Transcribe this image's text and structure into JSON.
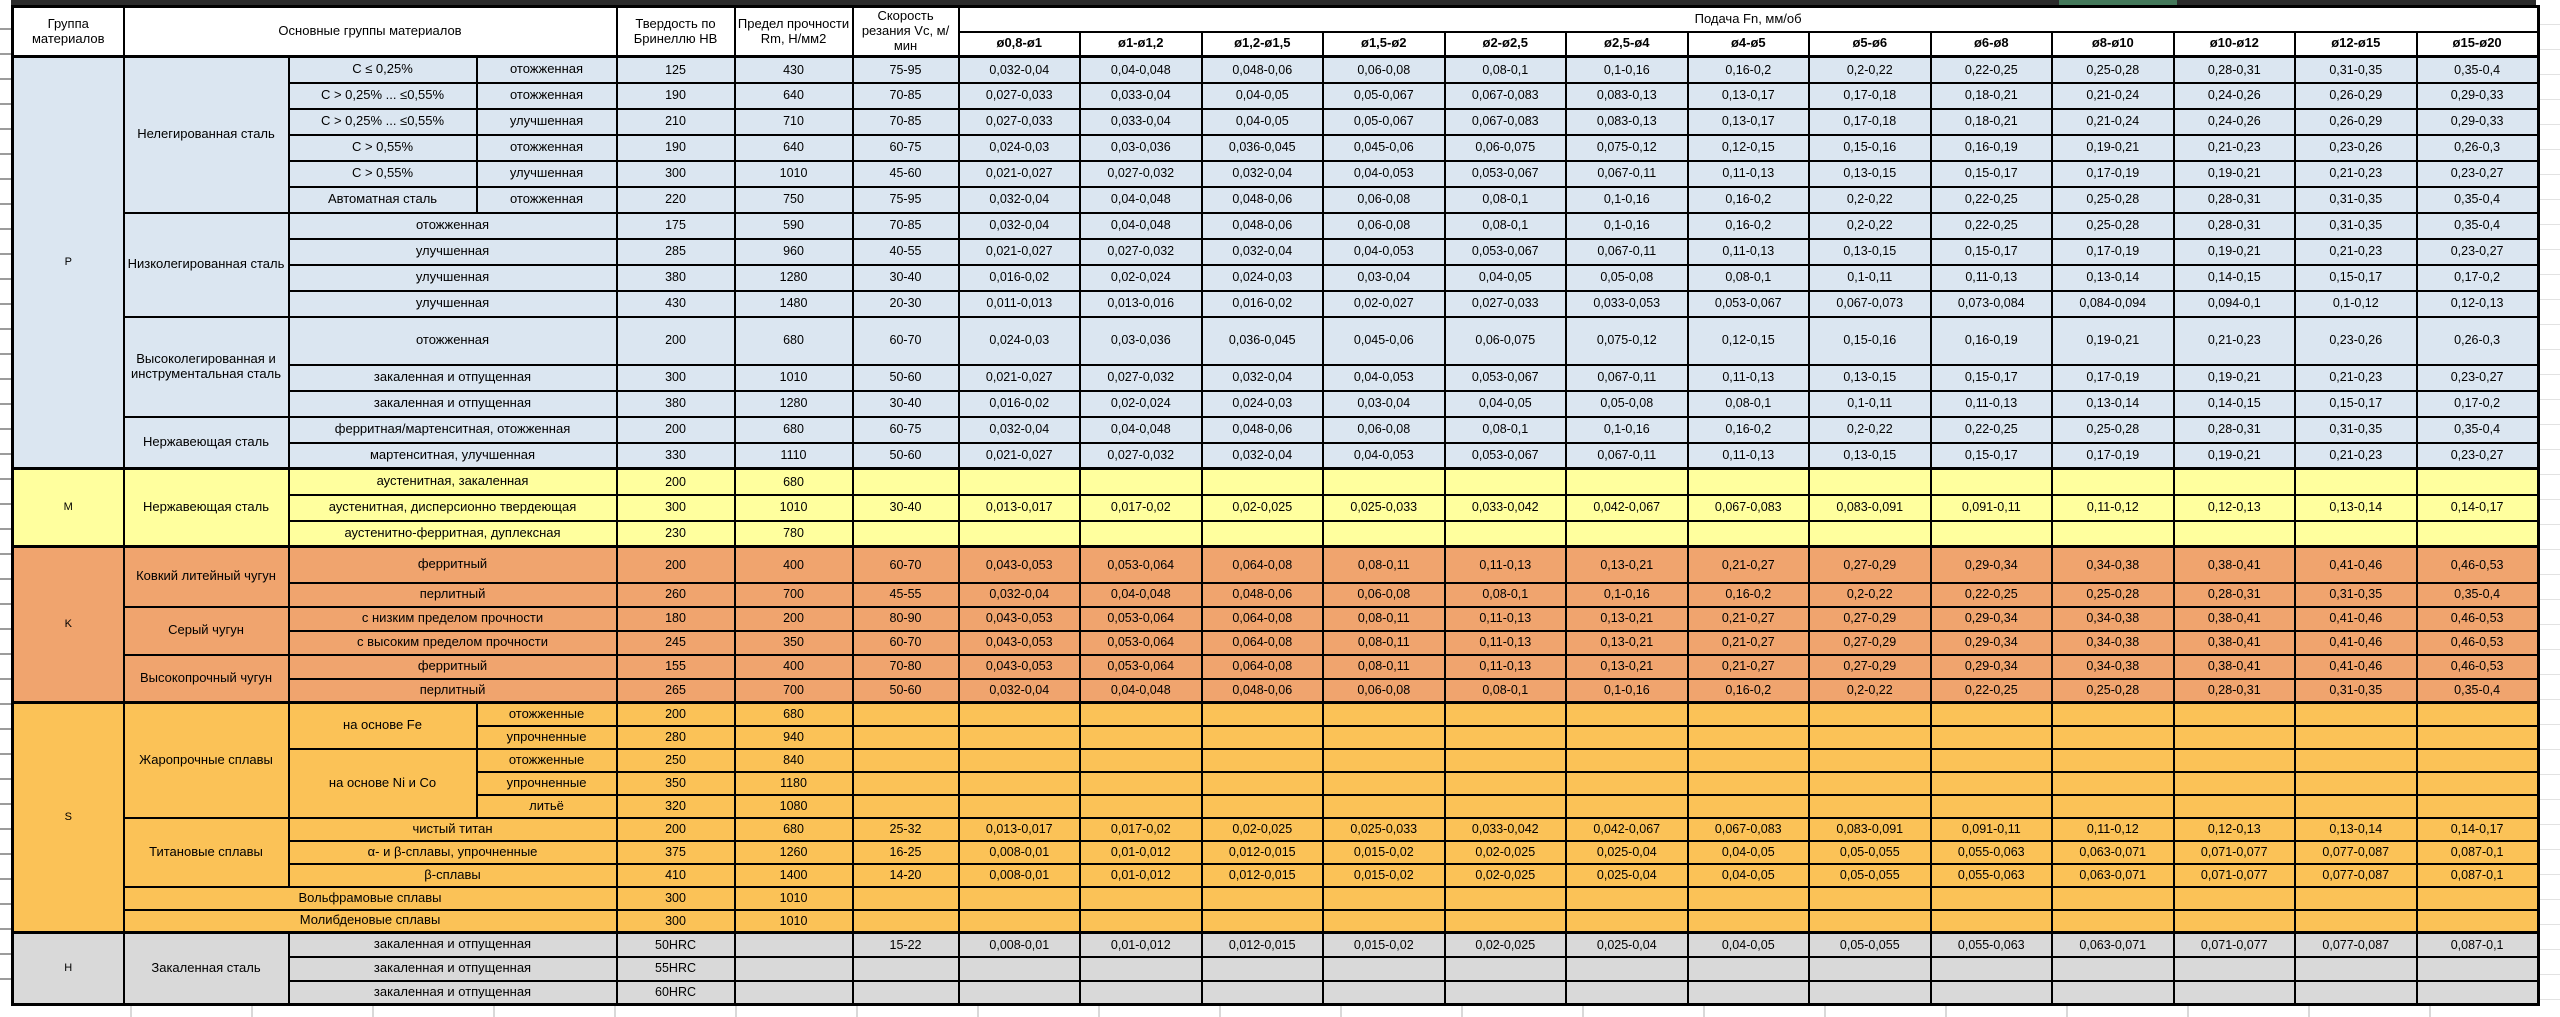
{
  "header": {
    "group": "Группа материалов",
    "main_groups": "Основные группы материалов",
    "hardness": "Твердость по Бринеллю HB",
    "strength": "Предел прочности Rm, Н/мм2",
    "speed": "Скорость резания Vc, м/мин",
    "feed": "Подача Fn, мм/об",
    "diameters": [
      "ø0,8-ø1",
      "ø1-ø1,2",
      "ø1,2-ø1,5",
      "ø1,5-ø2",
      "ø2-ø2,5",
      "ø2,5-ø4",
      "ø4-ø5",
      "ø5-ø6",
      "ø6-ø8",
      "ø8-ø10",
      "ø10-ø12",
      "ø12-ø15",
      "ø15-ø20"
    ]
  },
  "colors": {
    "group_p": "#dbe6f1",
    "group_m": "#ffff9e",
    "group_k": "#f0a46e",
    "group_s": "#fbc257",
    "group_h": "#d9d9d9",
    "selection_green": "#44785a",
    "top_strip": "#2b2b2b",
    "border": "#000000"
  },
  "feeds": {
    "A": [
      "0,032-0,04",
      "0,04-0,048",
      "0,048-0,06",
      "0,06-0,08",
      "0,08-0,1",
      "0,1-0,16",
      "0,16-0,2",
      "0,2-0,22",
      "0,22-0,25",
      "0,25-0,28",
      "0,28-0,31",
      "0,31-0,35",
      "0,35-0,4"
    ],
    "B": [
      "0,027-0,033",
      "0,033-0,04",
      "0,04-0,05",
      "0,05-0,067",
      "0,067-0,083",
      "0,083-0,13",
      "0,13-0,17",
      "0,17-0,18",
      "0,18-0,21",
      "0,21-0,24",
      "0,24-0,26",
      "0,26-0,29",
      "0,29-0,33"
    ],
    "C": [
      "0,024-0,03",
      "0,03-0,036",
      "0,036-0,045",
      "0,045-0,06",
      "0,06-0,075",
      "0,075-0,12",
      "0,12-0,15",
      "0,15-0,16",
      "0,16-0,19",
      "0,19-0,21",
      "0,21-0,23",
      "0,23-0,26",
      "0,26-0,3"
    ],
    "D": [
      "0,021-0,027",
      "0,027-0,032",
      "0,032-0,04",
      "0,04-0,053",
      "0,053-0,067",
      "0,067-0,11",
      "0,11-0,13",
      "0,13-0,15",
      "0,15-0,17",
      "0,17-0,19",
      "0,19-0,21",
      "0,21-0,23",
      "0,23-0,27"
    ],
    "E": [
      "0,016-0,02",
      "0,02-0,024",
      "0,024-0,03",
      "0,03-0,04",
      "0,04-0,05",
      "0,05-0,08",
      "0,08-0,1",
      "0,1-0,11",
      "0,11-0,13",
      "0,13-0,14",
      "0,14-0,15",
      "0,15-0,17",
      "0,17-0,2"
    ],
    "F": [
      "0,011-0,013",
      "0,013-0,016",
      "0,016-0,02",
      "0,02-0,027",
      "0,027-0,033",
      "0,033-0,053",
      "0,053-0,067",
      "0,067-0,073",
      "0,073-0,084",
      "0,084-0,094",
      "0,094-0,1",
      "0,1-0,12",
      "0,12-0,13"
    ],
    "G": [
      "0,013-0,017",
      "0,017-0,02",
      "0,02-0,025",
      "0,025-0,033",
      "0,033-0,042",
      "0,042-0,067",
      "0,067-0,083",
      "0,083-0,091",
      "0,091-0,11",
      "0,11-0,12",
      "0,12-0,13",
      "0,13-0,14",
      "0,14-0,17"
    ],
    "H": [
      "0,043-0,053",
      "0,053-0,064",
      "0,064-0,08",
      "0,08-0,11",
      "0,11-0,13",
      "0,13-0,21",
      "0,21-0,27",
      "0,27-0,29",
      "0,29-0,34",
      "0,34-0,38",
      "0,38-0,41",
      "0,41-0,46",
      "0,46-0,53"
    ],
    "I": [
      "0,008-0,01",
      "0,01-0,012",
      "0,012-0,015",
      "0,015-0,02",
      "0,02-0,025",
      "0,025-0,04",
      "0,04-0,05",
      "0,05-0,055",
      "0,055-0,063",
      "0,063-0,071",
      "0,071-0,077",
      "0,077-0,087",
      "0,087-0,1"
    ],
    "NONE": [
      "",
      "",
      "",
      "",
      "",
      "",
      "",
      "",
      "",
      "",
      "",
      "",
      ""
    ]
  },
  "groups": [
    {
      "key": "p",
      "letter": "P",
      "rh": 26,
      "rows": [
        {
          "cells": [
            {
              "t": "Нелегированная сталь",
              "rs": 6
            },
            {
              "t": "C ≤ 0,25%"
            },
            {
              "t": "отожженная"
            }
          ],
          "hb": "125",
          "rm": "430",
          "vc": "75-95",
          "feed": "A"
        },
        {
          "cells": [
            {
              "t": "C > 0,25% ... ≤0,55%"
            },
            {
              "t": "отожженная"
            }
          ],
          "hb": "190",
          "rm": "640",
          "vc": "70-85",
          "feed": "B"
        },
        {
          "cells": [
            {
              "t": "C > 0,25% ... ≤0,55%"
            },
            {
              "t": "улучшенная"
            }
          ],
          "hb": "210",
          "rm": "710",
          "vc": "70-85",
          "feed": "B"
        },
        {
          "cells": [
            {
              "t": "C > 0,55%"
            },
            {
              "t": "отожженная"
            }
          ],
          "hb": "190",
          "rm": "640",
          "vc": "60-75",
          "feed": "C"
        },
        {
          "cells": [
            {
              "t": "C > 0,55%"
            },
            {
              "t": "улучшенная"
            }
          ],
          "hb": "300",
          "rm": "1010",
          "vc": "45-60",
          "feed": "D"
        },
        {
          "cells": [
            {
              "t": "Автоматная сталь"
            },
            {
              "t": "отожженная"
            }
          ],
          "hb": "220",
          "rm": "750",
          "vc": "75-95",
          "feed": "A"
        },
        {
          "cells": [
            {
              "t": "Низколегированная сталь",
              "rs": 4
            },
            {
              "t": "отожженная",
              "cs": 2
            }
          ],
          "hb": "175",
          "rm": "590",
          "vc": "70-85",
          "feed": "A"
        },
        {
          "cells": [
            {
              "t": "улучшенная",
              "cs": 2
            }
          ],
          "hb": "285",
          "rm": "960",
          "vc": "40-55",
          "feed": "D"
        },
        {
          "cells": [
            {
              "t": "улучшенная",
              "cs": 2
            }
          ],
          "hb": "380",
          "rm": "1280",
          "vc": "30-40",
          "feed": "E"
        },
        {
          "cells": [
            {
              "t": "улучшенная",
              "cs": 2
            }
          ],
          "hb": "430",
          "rm": "1480",
          "vc": "20-30",
          "feed": "F"
        },
        {
          "cells": [
            {
              "t": "Высоколегированная и инструментальная сталь",
              "rs": 3
            },
            {
              "t": "отожженная",
              "cs": 2
            }
          ],
          "hb": "200",
          "rm": "680",
          "vc": "60-70",
          "feed": "C",
          "h": 48
        },
        {
          "cells": [
            {
              "t": "закаленная и отпущенная",
              "cs": 2
            }
          ],
          "hb": "300",
          "rm": "1010",
          "vc": "50-60",
          "feed": "D"
        },
        {
          "cells": [
            {
              "t": "закаленная и отпущенная",
              "cs": 2
            }
          ],
          "hb": "380",
          "rm": "1280",
          "vc": "30-40",
          "feed": "E"
        },
        {
          "cells": [
            {
              "t": "Нержавеющая сталь",
              "rs": 2
            },
            {
              "t": "ферритная/мартенситная, отожженная",
              "cs": 2
            }
          ],
          "hb": "200",
          "rm": "680",
          "vc": "60-75",
          "feed": "A"
        },
        {
          "cells": [
            {
              "t": "мартенситная, улучшенная",
              "cs": 2
            }
          ],
          "hb": "330",
          "rm": "1110",
          "vc": "50-60",
          "feed": "D"
        }
      ]
    },
    {
      "key": "m",
      "letter": "M",
      "rh": 26,
      "rows": [
        {
          "cells": [
            {
              "t": "Нержавеющая сталь",
              "rs": 3
            },
            {
              "t": "аустенитная, закаленная",
              "cs": 2
            }
          ],
          "hb": "200",
          "rm": "680",
          "vc": "",
          "feed": "NONE"
        },
        {
          "cells": [
            {
              "t": "аустенитная, дисперсионно твердеющая",
              "cs": 2
            }
          ],
          "hb": "300",
          "rm": "1010",
          "vc": "30-40",
          "feed": "G"
        },
        {
          "cells": [
            {
              "t": "аустенитно-ферритная, дуплексная",
              "cs": 2
            }
          ],
          "hb": "230",
          "rm": "780",
          "vc": "",
          "feed": "NONE"
        }
      ]
    },
    {
      "key": "k",
      "letter": "K",
      "rh": 24,
      "rows": [
        {
          "cells": [
            {
              "t": "Ковкий литейный чугун",
              "rs": 2
            },
            {
              "t": "ферритный",
              "cs": 2
            }
          ],
          "hb": "200",
          "rm": "400",
          "vc": "60-70",
          "feed": "H",
          "h": 36
        },
        {
          "cells": [
            {
              "t": "перлитный",
              "cs": 2
            }
          ],
          "hb": "260",
          "rm": "700",
          "vc": "45-55",
          "feed": "A"
        },
        {
          "cells": [
            {
              "t": "Серый чугун",
              "rs": 2
            },
            {
              "t": "с низким пределом прочности",
              "cs": 2
            }
          ],
          "hb": "180",
          "rm": "200",
          "vc": "80-90",
          "feed": "H"
        },
        {
          "cells": [
            {
              "t": "с высоким пределом прочности",
              "cs": 2
            }
          ],
          "hb": "245",
          "rm": "350",
          "vc": "60-70",
          "feed": "H"
        },
        {
          "cells": [
            {
              "t": "Высокопрочный чугун",
              "rs": 2
            },
            {
              "t": "ферритный",
              "cs": 2
            }
          ],
          "hb": "155",
          "rm": "400",
          "vc": "70-80",
          "feed": "H"
        },
        {
          "cells": [
            {
              "t": "перлитный",
              "cs": 2
            }
          ],
          "hb": "265",
          "rm": "700",
          "vc": "50-60",
          "feed": "A"
        }
      ]
    },
    {
      "key": "s",
      "letter": "S",
      "rh": 23,
      "rows": [
        {
          "cells": [
            {
              "t": "Жаропрочные сплавы",
              "rs": 5
            },
            {
              "t": "на основе Fe",
              "rs": 2
            },
            {
              "t": "отожженные"
            }
          ],
          "hb": "200",
          "rm": "680",
          "vc": "",
          "feed": "NONE"
        },
        {
          "cells": [
            {
              "t": "упрочненные"
            }
          ],
          "hb": "280",
          "rm": "940",
          "vc": "",
          "feed": "NONE"
        },
        {
          "cells": [
            {
              "t": "на основе Ni и Co",
              "rs": 3
            },
            {
              "t": "отожженные"
            }
          ],
          "hb": "250",
          "rm": "840",
          "vc": "",
          "feed": "NONE"
        },
        {
          "cells": [
            {
              "t": "упрочненные"
            }
          ],
          "hb": "350",
          "rm": "1180",
          "vc": "",
          "feed": "NONE"
        },
        {
          "cells": [
            {
              "t": "литьё"
            }
          ],
          "hb": "320",
          "rm": "1080",
          "vc": "",
          "feed": "NONE"
        },
        {
          "cells": [
            {
              "t": "Титановые сплавы",
              "rs": 3
            },
            {
              "t": "чистый титан",
              "cs": 2
            }
          ],
          "hb": "200",
          "rm": "680",
          "vc": "25-32",
          "feed": "G"
        },
        {
          "cells": [
            {
              "t": "α- и β-сплавы, упрочненные",
              "cs": 2
            }
          ],
          "hb": "375",
          "rm": "1260",
          "vc": "16-25",
          "feed": "I"
        },
        {
          "cells": [
            {
              "t": "β-сплавы",
              "cs": 2
            }
          ],
          "hb": "410",
          "rm": "1400",
          "vc": "14-20",
          "feed": "I"
        },
        {
          "cells": [
            {
              "t": "Вольфрамовые сплавы",
              "cs": 3
            }
          ],
          "hb": "300",
          "rm": "1010",
          "vc": "",
          "feed": "NONE"
        },
        {
          "cells": [
            {
              "t": "Молибденовые сплавы",
              "cs": 3
            }
          ],
          "hb": "300",
          "rm": "1010",
          "vc": "",
          "feed": "NONE"
        }
      ]
    },
    {
      "key": "h",
      "letter": "H",
      "rh": 24,
      "rows": [
        {
          "cells": [
            {
              "t": "Закаленная сталь",
              "rs": 3
            },
            {
              "t": "закаленная и отпущенная",
              "cs": 2
            }
          ],
          "hb": "50HRC",
          "rm": "",
          "vc": "15-22",
          "feed": "I"
        },
        {
          "cells": [
            {
              "t": "закаленная и отпущенная",
              "cs": 2
            }
          ],
          "hb": "55HRC",
          "rm": "",
          "vc": "",
          "feed": "NONE"
        },
        {
          "cells": [
            {
              "t": "закаленная и отпущенная",
              "cs": 2
            }
          ],
          "hb": "60HRC",
          "rm": "",
          "vc": "",
          "feed": "NONE"
        }
      ]
    }
  ]
}
